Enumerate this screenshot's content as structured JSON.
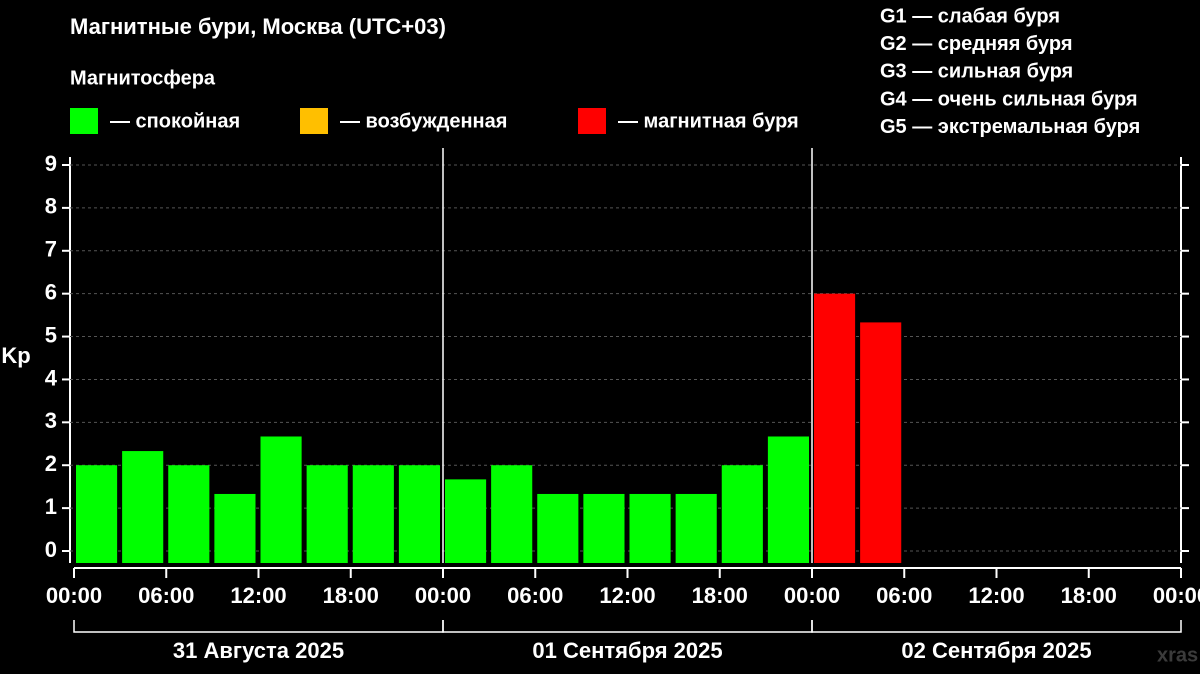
{
  "chart_data": {
    "type": "bar",
    "title": "Магнитные бури, Москва (UTC+03)",
    "subtitle": "Магнитосфера",
    "legend": [
      {
        "name": "— спокойная",
        "color": "#00ff00"
      },
      {
        "name": "— возбужденная",
        "color": "#ffbf00"
      },
      {
        "name": "— магнитная буря",
        "color": "#ff0000"
      }
    ],
    "storm_levels": [
      "G1 — слабая буря",
      "G2 — средняя буря",
      "G3 — сильная буря",
      "G4 — очень сильная буря",
      "G5 — экстремальная буря"
    ],
    "ylabel": "Kp",
    "bar_hours": 3,
    "x": [
      0,
      3,
      6,
      9,
      12,
      15,
      18,
      21,
      24,
      27,
      30,
      33,
      36,
      39,
      42,
      45,
      48,
      51
    ],
    "values": [
      2,
      2.33,
      2,
      1.33,
      2.67,
      2,
      2,
      2,
      1.67,
      2,
      1.33,
      1.33,
      1.33,
      1.33,
      2,
      2.67,
      6,
      5.33
    ],
    "colors": [
      "#00ff00",
      "#00ff00",
      "#00ff00",
      "#00ff00",
      "#00ff00",
      "#00ff00",
      "#00ff00",
      "#00ff00",
      "#00ff00",
      "#00ff00",
      "#00ff00",
      "#00ff00",
      "#00ff00",
      "#00ff00",
      "#00ff00",
      "#00ff00",
      "#ff0000",
      "#ff0000"
    ],
    "xlim": [
      0,
      72
    ],
    "xticks": [
      {
        "value": 0,
        "label": "00:00"
      },
      {
        "value": 6,
        "label": "06:00"
      },
      {
        "value": 12,
        "label": "12:00"
      },
      {
        "value": 18,
        "label": "18:00"
      },
      {
        "value": 24,
        "label": "00:00"
      },
      {
        "value": 30,
        "label": "06:00"
      },
      {
        "value": 36,
        "label": "12:00"
      },
      {
        "value": 42,
        "label": "18:00"
      },
      {
        "value": 48,
        "label": "00:00"
      },
      {
        "value": 54,
        "label": "06:00"
      },
      {
        "value": 60,
        "label": "12:00"
      },
      {
        "value": 66,
        "label": "18:00"
      },
      {
        "value": 72,
        "label": "00:00"
      }
    ],
    "days": [
      "31 Августа 2025",
      "01 Сентября 2025",
      "02 Сентября 2025"
    ],
    "ylim": [
      0,
      9
    ],
    "yticks": [
      0,
      1,
      2,
      3,
      4,
      5,
      6,
      7,
      8,
      9
    ],
    "grid": true,
    "watermark": "xras"
  }
}
